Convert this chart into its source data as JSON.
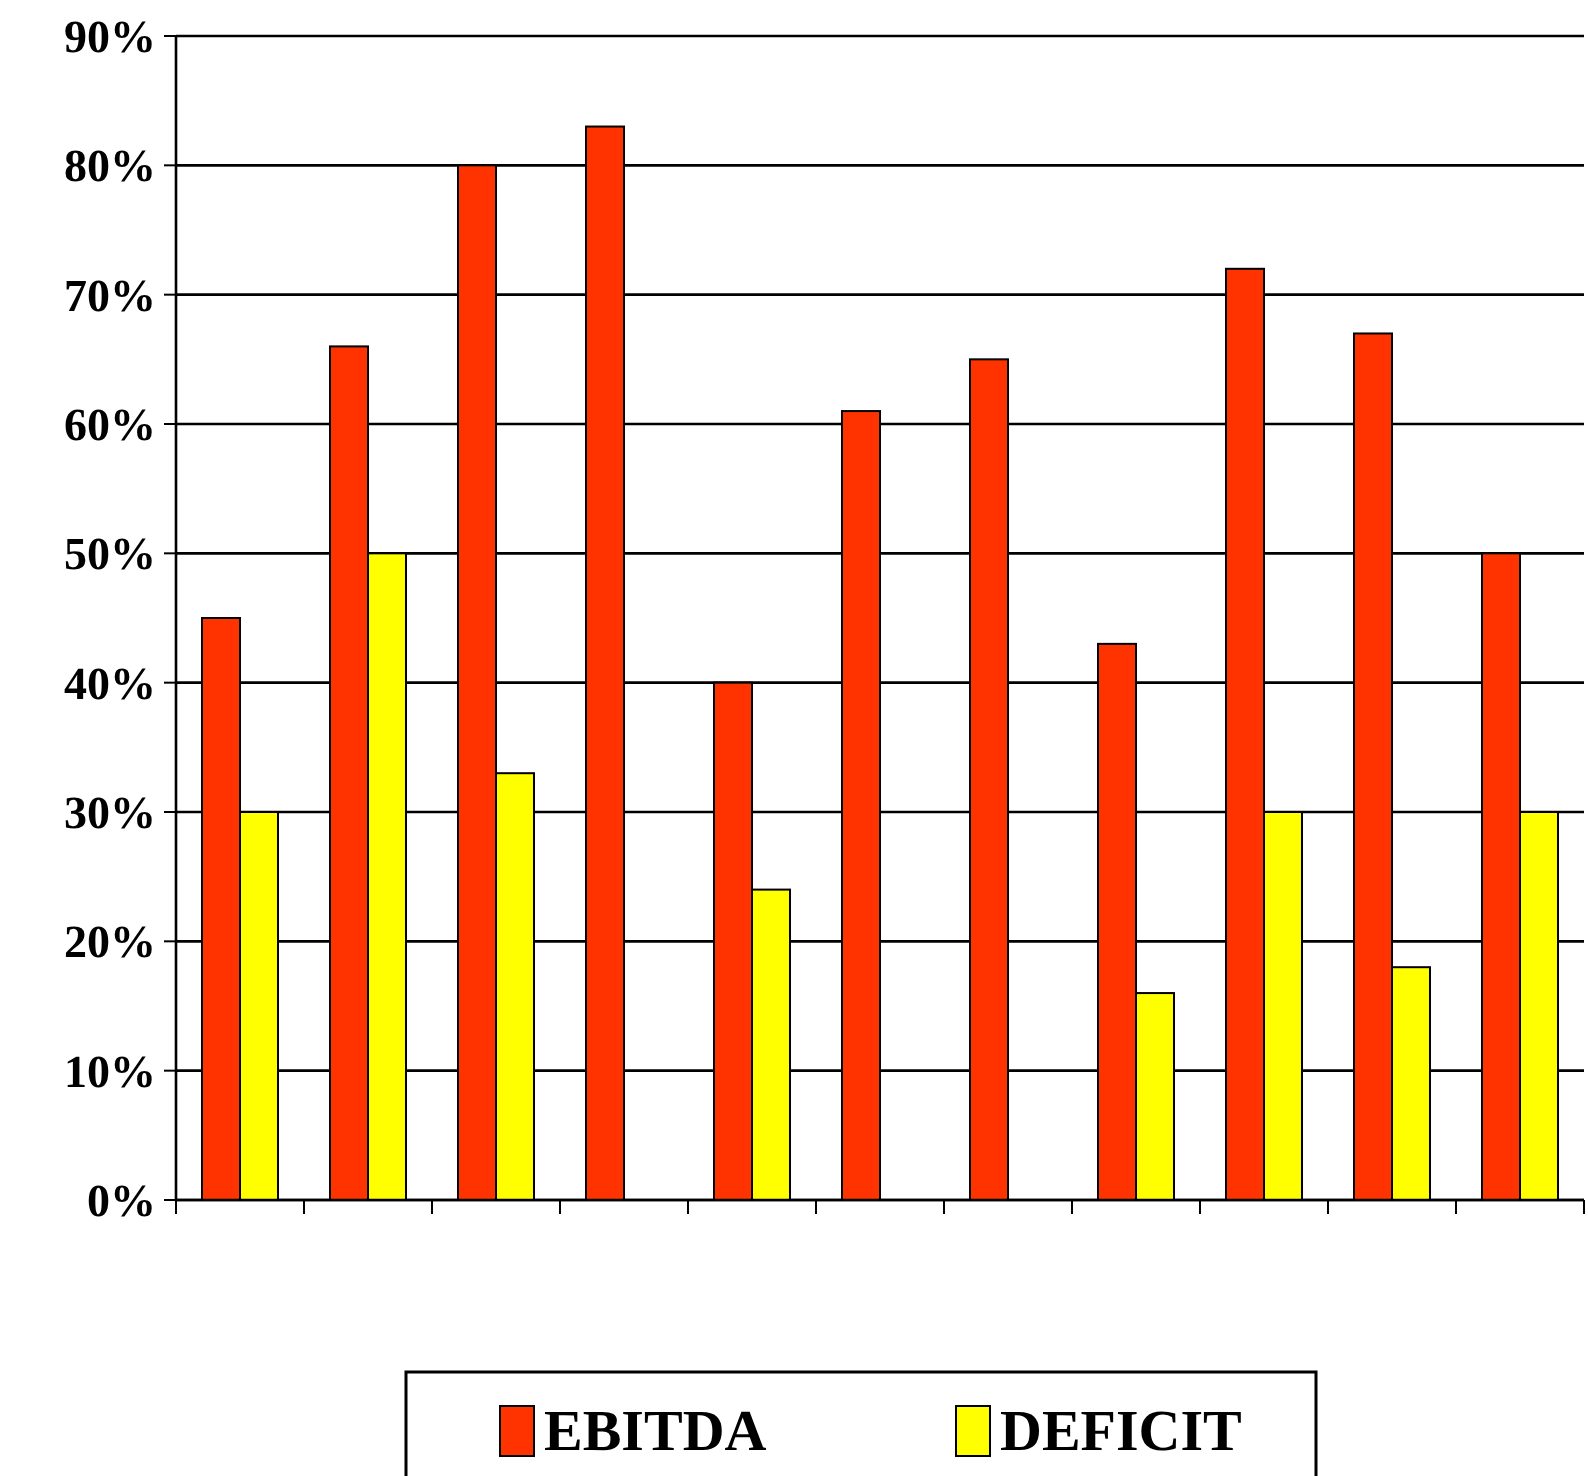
{
  "chart_data": {
    "type": "bar",
    "categories": [
      null,
      null,
      null,
      null,
      null,
      null,
      null,
      null,
      null,
      null,
      null
    ],
    "series": [
      {
        "name": "EBITDA",
        "color": "#ff3300",
        "values": [
          45,
          66,
          80,
          83,
          40,
          61,
          65,
          43,
          72,
          67,
          50
        ]
      },
      {
        "name": "DEFICIT",
        "color": "#ffff00",
        "values": [
          30,
          50,
          33,
          null,
          24,
          null,
          null,
          16,
          30,
          18,
          30
        ]
      }
    ],
    "ylim": [
      0,
      90
    ],
    "yticks": [
      {
        "value": 0,
        "label": "0%"
      },
      {
        "value": 10,
        "label": "10%"
      },
      {
        "value": 20,
        "label": "20%"
      },
      {
        "value": 30,
        "label": "30%"
      },
      {
        "value": 40,
        "label": "40%"
      },
      {
        "value": 50,
        "label": "50%"
      },
      {
        "value": 60,
        "label": "60%"
      },
      {
        "value": 70,
        "label": "70%"
      },
      {
        "value": 80,
        "label": "80%"
      },
      {
        "value": 90,
        "label": "90%"
      }
    ],
    "grid": "y",
    "legend": "bottom"
  }
}
